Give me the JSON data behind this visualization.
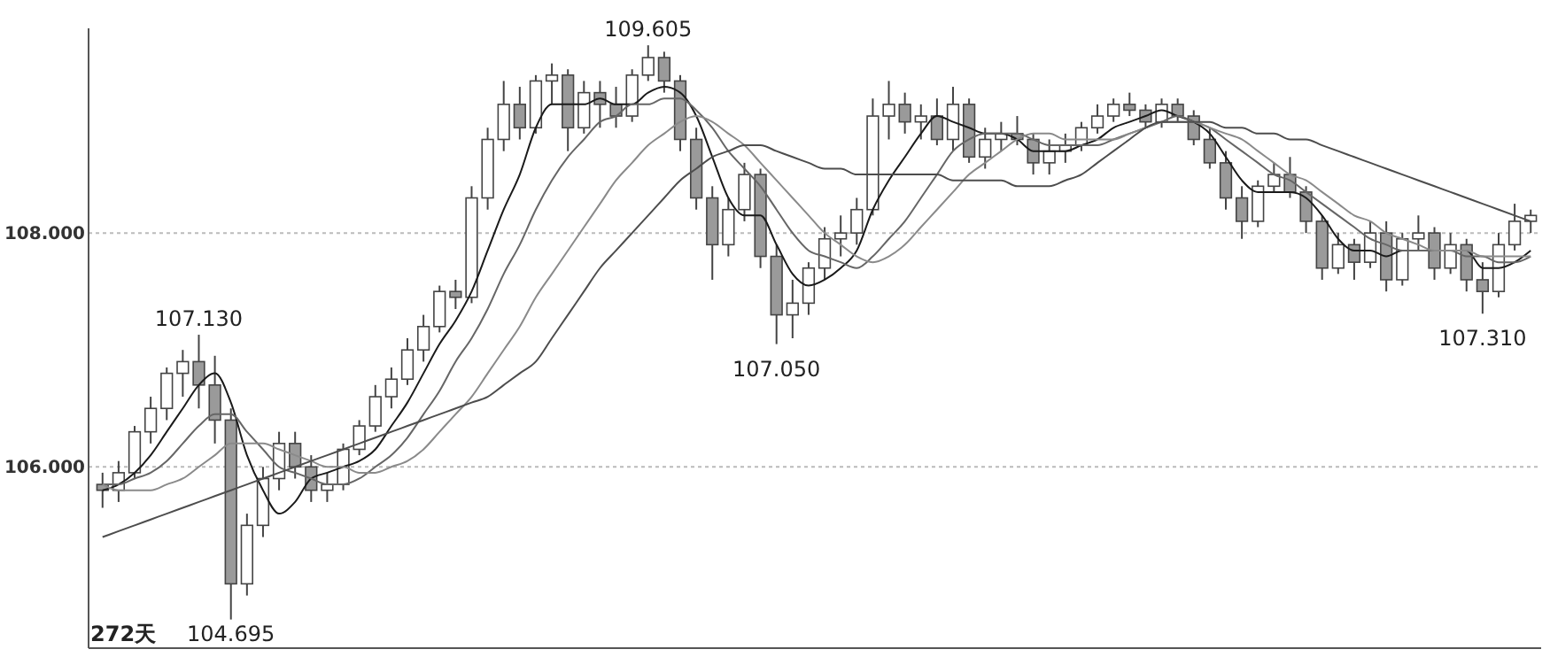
{
  "chart_data": {
    "type": "candlestick",
    "color": "#444444",
    "ylim": [
      104.45,
      109.75
    ],
    "yticks": [
      {
        "value": 106,
        "label": "106.000"
      },
      {
        "value": 108,
        "label": "108.000"
      }
    ],
    "grid": "y",
    "tick_labels": "y",
    "categories": [
      null,
      null,
      null,
      null,
      null,
      null,
      null,
      null,
      null,
      null,
      null,
      null,
      null,
      null,
      null,
      null,
      null,
      null,
      null,
      null,
      null,
      null,
      null,
      null,
      null,
      null,
      null,
      null,
      null,
      null,
      null,
      null,
      null,
      null,
      null,
      null,
      null,
      null,
      null,
      null,
      null,
      null,
      null,
      null,
      null,
      null,
      null,
      null,
      null,
      null,
      null,
      null,
      null,
      null,
      null,
      null,
      null,
      null,
      null,
      null,
      null,
      null,
      null,
      null,
      null,
      null,
      null,
      null,
      null,
      null,
      null,
      null,
      null,
      null,
      null,
      null,
      null,
      null,
      null,
      null,
      null,
      null,
      null,
      null,
      null,
      null,
      null,
      null,
      null,
      null
    ],
    "ohlc": [
      [
        105.85,
        105.95,
        105.65,
        105.8
      ],
      [
        105.8,
        106.05,
        105.7,
        105.95
      ],
      [
        105.95,
        106.35,
        105.9,
        106.3
      ],
      [
        106.3,
        106.6,
        106.2,
        106.5
      ],
      [
        106.5,
        106.85,
        106.4,
        106.8
      ],
      [
        106.8,
        107.0,
        106.6,
        106.9
      ],
      [
        106.9,
        107.13,
        106.5,
        106.7
      ],
      [
        106.7,
        106.95,
        106.2,
        106.4
      ],
      [
        106.4,
        106.5,
        104.695,
        105.0
      ],
      [
        105.0,
        105.6,
        104.9,
        105.5
      ],
      [
        105.5,
        106.0,
        105.4,
        105.9
      ],
      [
        105.9,
        106.3,
        105.8,
        106.2
      ],
      [
        106.2,
        106.3,
        105.9,
        106.0
      ],
      [
        106.0,
        106.1,
        105.7,
        105.8
      ],
      [
        105.8,
        105.95,
        105.7,
        105.85
      ],
      [
        105.85,
        106.2,
        105.8,
        106.15
      ],
      [
        106.15,
        106.4,
        106.1,
        106.35
      ],
      [
        106.35,
        106.7,
        106.3,
        106.6
      ],
      [
        106.6,
        106.85,
        106.5,
        106.75
      ],
      [
        106.75,
        107.1,
        106.7,
        107.0
      ],
      [
        107.0,
        107.3,
        106.9,
        107.2
      ],
      [
        107.2,
        107.55,
        107.15,
        107.5
      ],
      [
        107.5,
        107.6,
        107.35,
        107.45
      ],
      [
        107.45,
        108.4,
        107.4,
        108.3
      ],
      [
        108.3,
        108.9,
        108.2,
        108.8
      ],
      [
        108.8,
        109.3,
        108.7,
        109.1
      ],
      [
        109.1,
        109.25,
        108.8,
        108.9
      ],
      [
        108.9,
        109.35,
        108.85,
        109.3
      ],
      [
        109.3,
        109.45,
        109.1,
        109.35
      ],
      [
        109.35,
        109.4,
        108.7,
        108.9
      ],
      [
        108.9,
        109.3,
        108.85,
        109.2
      ],
      [
        109.2,
        109.3,
        108.9,
        109.1
      ],
      [
        109.1,
        109.25,
        108.9,
        109.0
      ],
      [
        109.0,
        109.4,
        108.95,
        109.35
      ],
      [
        109.35,
        109.605,
        109.3,
        109.5
      ],
      [
        109.5,
        109.55,
        109.2,
        109.3
      ],
      [
        109.3,
        109.35,
        108.7,
        108.8
      ],
      [
        108.8,
        108.9,
        108.2,
        108.3
      ],
      [
        108.3,
        108.4,
        107.6,
        107.9
      ],
      [
        107.9,
        108.3,
        107.8,
        108.2
      ],
      [
        108.2,
        108.6,
        108.1,
        108.5
      ],
      [
        108.5,
        108.55,
        107.7,
        107.8
      ],
      [
        107.8,
        107.9,
        107.05,
        107.3
      ],
      [
        107.3,
        107.6,
        107.1,
        107.4
      ],
      [
        107.4,
        107.75,
        107.3,
        107.7
      ],
      [
        107.7,
        108.05,
        107.6,
        107.95
      ],
      [
        107.95,
        108.15,
        107.8,
        108.0
      ],
      [
        108.0,
        108.3,
        107.9,
        108.2
      ],
      [
        108.2,
        109.15,
        108.15,
        109.0
      ],
      [
        109.0,
        109.3,
        108.8,
        109.1
      ],
      [
        109.1,
        109.2,
        108.85,
        108.95
      ],
      [
        108.95,
        109.1,
        108.8,
        109.0
      ],
      [
        109.0,
        109.15,
        108.75,
        108.8
      ],
      [
        108.8,
        109.25,
        108.7,
        109.1
      ],
      [
        109.1,
        109.15,
        108.6,
        108.65
      ],
      [
        108.65,
        108.9,
        108.55,
        108.8
      ],
      [
        108.8,
        108.95,
        108.7,
        108.85
      ],
      [
        108.85,
        109.0,
        108.75,
        108.8
      ],
      [
        108.8,
        108.85,
        108.5,
        108.6
      ],
      [
        108.6,
        108.8,
        108.5,
        108.7
      ],
      [
        108.7,
        108.85,
        108.6,
        108.75
      ],
      [
        108.75,
        108.95,
        108.7,
        108.9
      ],
      [
        108.9,
        109.1,
        108.85,
        109.0
      ],
      [
        109.0,
        109.15,
        108.95,
        109.1
      ],
      [
        109.1,
        109.2,
        109.0,
        109.05
      ],
      [
        109.05,
        109.1,
        108.9,
        108.95
      ],
      [
        108.95,
        109.15,
        108.9,
        109.1
      ],
      [
        109.1,
        109.15,
        108.95,
        109.0
      ],
      [
        109.0,
        109.05,
        108.75,
        108.8
      ],
      [
        108.8,
        108.9,
        108.55,
        108.6
      ],
      [
        108.6,
        108.7,
        108.2,
        108.3
      ],
      [
        108.3,
        108.4,
        107.95,
        108.1
      ],
      [
        108.1,
        108.45,
        108.05,
        108.4
      ],
      [
        108.4,
        108.6,
        108.35,
        108.5
      ],
      [
        108.5,
        108.65,
        108.3,
        108.35
      ],
      [
        108.35,
        108.4,
        108.0,
        108.1
      ],
      [
        108.1,
        108.15,
        107.6,
        107.7
      ],
      [
        107.7,
        108.0,
        107.65,
        107.9
      ],
      [
        107.9,
        107.95,
        107.6,
        107.75
      ],
      [
        107.75,
        108.1,
        107.7,
        108.0
      ],
      [
        108.0,
        108.1,
        107.5,
        107.6
      ],
      [
        107.6,
        108.0,
        107.55,
        107.95
      ],
      [
        107.95,
        108.15,
        107.85,
        108.0
      ],
      [
        108.0,
        108.05,
        107.6,
        107.7
      ],
      [
        107.7,
        108.0,
        107.65,
        107.9
      ],
      [
        107.9,
        107.95,
        107.5,
        107.6
      ],
      [
        107.6,
        107.75,
        107.31,
        107.5
      ],
      [
        107.5,
        108.0,
        107.45,
        107.9
      ],
      [
        107.9,
        108.25,
        107.85,
        108.1
      ],
      [
        108.1,
        108.2,
        108.0,
        108.15
      ]
    ],
    "series": [
      {
        "type": "line",
        "color": "#1a1a1a",
        "values": [
          105.8,
          105.85,
          105.95,
          106.1,
          106.3,
          106.5,
          106.7,
          106.8,
          106.55,
          106.1,
          105.8,
          105.6,
          105.7,
          105.9,
          105.95,
          106.0,
          106.05,
          106.15,
          106.35,
          106.55,
          106.8,
          107.05,
          107.25,
          107.5,
          107.85,
          108.2,
          108.5,
          108.9,
          109.1,
          109.1,
          109.1,
          109.15,
          109.1,
          109.1,
          109.2,
          109.25,
          109.2,
          109.0,
          108.65,
          108.3,
          108.15,
          108.15,
          107.9,
          107.65,
          107.55,
          107.6,
          107.7,
          107.85,
          108.2,
          108.45,
          108.65,
          108.85,
          109.0,
          108.95,
          108.9,
          108.85,
          108.85,
          108.8,
          108.7,
          108.7,
          108.7,
          108.75,
          108.8,
          108.9,
          108.95,
          109.0,
          109.05,
          109.0,
          108.95,
          108.85,
          108.65,
          108.45,
          108.35,
          108.35,
          108.35,
          108.3,
          108.15,
          107.95,
          107.85,
          107.85,
          107.8,
          107.85,
          107.85,
          107.85,
          107.85,
          107.85,
          107.7,
          107.7,
          107.75,
          107.85
        ]
      },
      {
        "type": "line",
        "color": "#666666",
        "values": [
          105.85,
          105.85,
          105.9,
          105.95,
          106.05,
          106.2,
          106.35,
          106.45,
          106.45,
          106.3,
          106.15,
          106.0,
          105.95,
          105.9,
          105.85,
          105.85,
          105.9,
          106.0,
          106.1,
          106.25,
          106.45,
          106.65,
          106.9,
          107.1,
          107.35,
          107.65,
          107.9,
          108.2,
          108.45,
          108.65,
          108.8,
          108.95,
          109.0,
          109.1,
          109.1,
          109.15,
          109.15,
          109.05,
          108.9,
          108.7,
          108.55,
          108.4,
          108.2,
          108.0,
          107.85,
          107.8,
          107.75,
          107.7,
          107.8,
          107.95,
          108.1,
          108.3,
          108.5,
          108.7,
          108.8,
          108.85,
          108.85,
          108.85,
          108.8,
          108.75,
          108.75,
          108.75,
          108.75,
          108.8,
          108.85,
          108.9,
          108.95,
          109.0,
          108.95,
          108.9,
          108.8,
          108.7,
          108.6,
          108.5,
          108.45,
          108.35,
          108.25,
          108.15,
          108.05,
          107.95,
          107.9,
          107.85,
          107.85,
          107.85,
          107.85,
          107.8,
          107.8,
          107.75,
          107.75,
          107.8
        ]
      },
      {
        "type": "line",
        "color": "#8a8a8a",
        "values": [
          105.85,
          105.8,
          105.8,
          105.8,
          105.85,
          105.9,
          106.0,
          106.1,
          106.2,
          106.2,
          106.2,
          106.15,
          106.1,
          106.05,
          106.0,
          106.0,
          105.95,
          105.95,
          106.0,
          106.05,
          106.15,
          106.3,
          106.45,
          106.6,
          106.8,
          107.0,
          107.2,
          107.45,
          107.65,
          107.85,
          108.05,
          108.25,
          108.45,
          108.6,
          108.75,
          108.85,
          108.95,
          109.0,
          108.95,
          108.85,
          108.75,
          108.6,
          108.45,
          108.3,
          108.15,
          108.0,
          107.9,
          107.8,
          107.75,
          107.8,
          107.9,
          108.05,
          108.2,
          108.35,
          108.5,
          108.6,
          108.7,
          108.8,
          108.85,
          108.85,
          108.8,
          108.8,
          108.8,
          108.8,
          108.85,
          108.9,
          108.95,
          108.95,
          108.95,
          108.9,
          108.85,
          108.8,
          108.7,
          108.6,
          108.5,
          108.45,
          108.35,
          108.25,
          108.15,
          108.1,
          108.0,
          107.95,
          107.9,
          107.85,
          107.85,
          107.85,
          107.8,
          107.8,
          107.8,
          107.8
        ]
      },
      {
        "type": "line",
        "color": "#4d4d4d",
        "values": [
          105.4,
          105.45,
          105.5,
          105.55,
          105.6,
          105.65,
          105.7,
          105.75,
          105.8,
          105.85,
          105.9,
          105.95,
          106.0,
          106.05,
          106.1,
          106.15,
          106.2,
          106.25,
          106.3,
          106.35,
          106.4,
          106.45,
          106.5,
          106.55,
          106.6,
          106.7,
          106.8,
          106.9,
          107.1,
          107.3,
          107.5,
          107.7,
          107.85,
          108.0,
          108.15,
          108.3,
          108.45,
          108.55,
          108.65,
          108.7,
          108.75,
          108.75,
          108.7,
          108.65,
          108.6,
          108.55,
          108.55,
          108.5,
          108.5,
          108.5,
          108.5,
          108.5,
          108.5,
          108.45,
          108.45,
          108.45,
          108.45,
          108.4,
          108.4,
          108.4,
          108.45,
          108.5,
          108.6,
          108.7,
          108.8,
          108.9,
          108.95,
          108.95,
          108.95,
          108.95,
          108.9,
          108.9,
          108.85,
          108.85,
          108.8,
          108.8,
          108.75,
          108.7,
          108.65,
          108.6,
          108.55,
          108.5,
          108.45,
          108.4,
          108.35,
          108.3,
          108.25,
          108.2,
          108.15,
          108.1
        ]
      }
    ],
    "annotations": [
      {
        "text": "109.605",
        "y": 109.605
      },
      {
        "text": "107.130",
        "y": 107.13
      },
      {
        "text": "107.050",
        "y": 107.05
      },
      {
        "text": "107.310",
        "y": 107.31
      },
      {
        "text": "104.695",
        "y": 104.695
      },
      "272天"
    ]
  }
}
